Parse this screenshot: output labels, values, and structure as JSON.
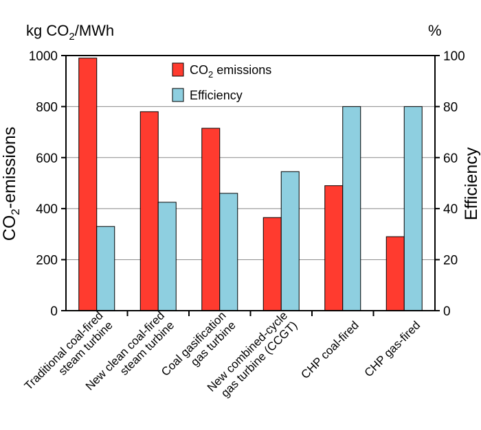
{
  "chart_data": {
    "type": "bar",
    "title": "",
    "categories": [
      [
        "Traditional coal-fired",
        "steam turbine"
      ],
      [
        "New clean coal-fired",
        "steam turbine"
      ],
      [
        "Coal gasification",
        "gas turbine"
      ],
      [
        "New combined-cycle",
        "gas turbine (CCGT)"
      ],
      [
        "CHP coal-fired"
      ],
      [
        "CHP gas-fired"
      ]
    ],
    "series": [
      {
        "name": "CO2 emissions",
        "name_main": "CO",
        "name_sub": "2",
        "name_rest": " emissions",
        "axis": "left",
        "color": "#ff3b2f",
        "values": [
          990,
          780,
          715,
          365,
          490,
          290
        ]
      },
      {
        "name": "Efficiency",
        "axis": "right",
        "color": "#8ecfe0",
        "values": [
          33,
          42.5,
          46,
          54.5,
          80,
          80
        ]
      }
    ],
    "left_axis": {
      "unit_main": "kg CO",
      "unit_sub": "2",
      "unit_rest": "/MWh",
      "title_main": "CO",
      "title_sub": "2",
      "title_rest": "-emissions",
      "ylim": [
        0,
        1000
      ],
      "ticks": [
        "0",
        "200",
        "400",
        "600",
        "800",
        "1000"
      ]
    },
    "right_axis": {
      "unit": "%",
      "title": "Efficiency",
      "ylim": [
        0,
        100
      ],
      "ticks": [
        "0",
        "20",
        "40",
        "60",
        "80",
        "100"
      ]
    },
    "grid": true,
    "legend_position": "top-center"
  }
}
